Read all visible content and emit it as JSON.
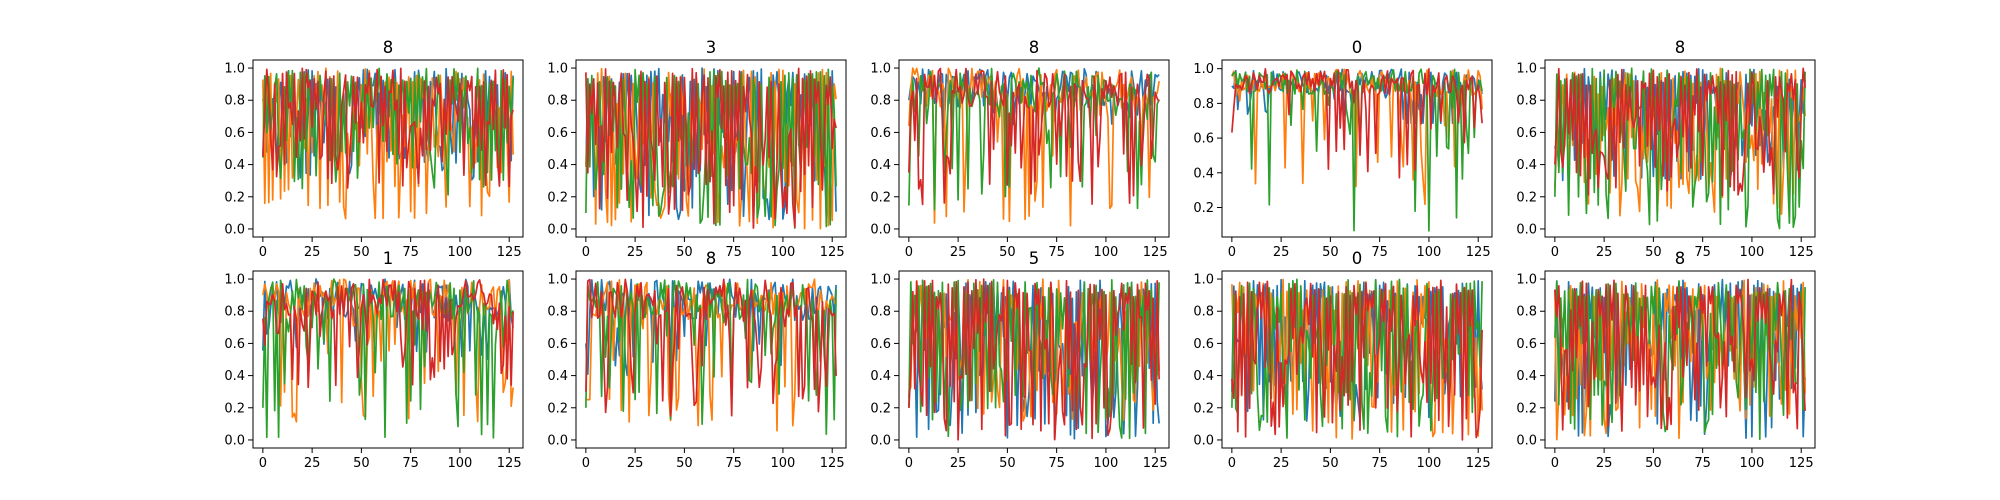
{
  "chart_data": {
    "type": "line",
    "layout": "grid 2 rows x 5 columns",
    "series_colors": [
      "#1f77b4",
      "#ff7f0e",
      "#2ca02c",
      "#d62728"
    ],
    "panels": [
      {
        "title": "8",
        "xlim": [
          -5,
          132
        ],
        "ylim": [
          -0.05,
          1.05
        ],
        "xticks": [
          0,
          25,
          50,
          75,
          100,
          125
        ],
        "yticks": [
          0.0,
          0.2,
          0.4,
          0.6,
          0.8,
          1.0
        ],
        "ytick_labels": [
          "0.0",
          "0.2",
          "0.4",
          "0.6",
          "0.8",
          "1.0"
        ],
        "x": [
          0,
          127
        ],
        "series_low": [
          0.3,
          0.05,
          0.2,
          0.25
        ],
        "series_pattern": "oscillating"
      },
      {
        "title": "3",
        "xlim": [
          -5,
          132
        ],
        "ylim": [
          -0.05,
          1.05
        ],
        "xticks": [
          0,
          25,
          50,
          75,
          100,
          125
        ],
        "yticks": [
          0.0,
          0.2,
          0.4,
          0.6,
          0.8,
          1.0
        ],
        "ytick_labels": [
          "0.0",
          "0.2",
          "0.4",
          "0.6",
          "0.8",
          "1.0"
        ],
        "x": [
          0,
          127
        ],
        "series_low": [
          0.05,
          0.0,
          0.0,
          0.0
        ],
        "series_pattern": "oscillating"
      },
      {
        "title": "8",
        "xlim": [
          -5,
          132
        ],
        "ylim": [
          -0.05,
          1.05
        ],
        "xticks": [
          0,
          25,
          50,
          75,
          100,
          125
        ],
        "yticks": [
          0.0,
          0.2,
          0.4,
          0.6,
          0.8,
          1.0
        ],
        "ytick_labels": [
          "0.0",
          "0.2",
          "0.4",
          "0.6",
          "0.8",
          "1.0"
        ],
        "x": [
          0,
          127
        ],
        "series_low": [
          0.6,
          0.02,
          0.1,
          0.15
        ],
        "series_pattern": "mixed"
      },
      {
        "title": "0",
        "xlim": [
          -5,
          132
        ],
        "ylim": [
          0.03,
          1.05
        ],
        "xticks": [
          0,
          25,
          50,
          75,
          100,
          125
        ],
        "yticks": [
          0.2,
          0.4,
          0.6,
          0.8,
          1.0
        ],
        "ytick_labels": [
          "0.2",
          "0.4",
          "0.6",
          "0.8",
          "1.0"
        ],
        "x": [
          0,
          127
        ],
        "series_low": [
          0.7,
          0.2,
          0.05,
          0.35
        ],
        "series_pattern": "high-plateau"
      },
      {
        "title": "8",
        "xlim": [
          -5,
          132
        ],
        "ylim": [
          -0.05,
          1.05
        ],
        "xticks": [
          0,
          25,
          50,
          75,
          100,
          125
        ],
        "yticks": [
          0.0,
          0.2,
          0.4,
          0.6,
          0.8,
          1.0
        ],
        "ytick_labels": [
          "0.0",
          "0.2",
          "0.4",
          "0.6",
          "0.8",
          "1.0"
        ],
        "x": [
          0,
          127
        ],
        "series_low": [
          0.3,
          0.05,
          0.0,
          0.2
        ],
        "series_pattern": "oscillating"
      },
      {
        "title": "1",
        "xlim": [
          -5,
          132
        ],
        "ylim": [
          -0.05,
          1.05
        ],
        "xticks": [
          0,
          25,
          50,
          75,
          100,
          125
        ],
        "yticks": [
          0.0,
          0.2,
          0.4,
          0.6,
          0.8,
          1.0
        ],
        "ytick_labels": [
          "0.0",
          "0.2",
          "0.4",
          "0.6",
          "0.8",
          "1.0"
        ],
        "x": [
          0,
          127
        ],
        "series_low": [
          0.5,
          0.1,
          0.0,
          0.3
        ],
        "series_pattern": "mixed"
      },
      {
        "title": "8",
        "xlim": [
          -5,
          132
        ],
        "ylim": [
          -0.05,
          1.05
        ],
        "xticks": [
          0,
          25,
          50,
          75,
          100,
          125
        ],
        "yticks": [
          0.0,
          0.2,
          0.4,
          0.6,
          0.8,
          1.0
        ],
        "ytick_labels": [
          "0.0",
          "0.2",
          "0.4",
          "0.6",
          "0.8",
          "1.0"
        ],
        "x": [
          0,
          127
        ],
        "series_low": [
          0.4,
          0.05,
          0.0,
          0.1
        ],
        "series_pattern": "mixed"
      },
      {
        "title": "5",
        "xlim": [
          -5,
          132
        ],
        "ylim": [
          -0.05,
          1.05
        ],
        "xticks": [
          0,
          25,
          50,
          75,
          100,
          125
        ],
        "yticks": [
          0.0,
          0.2,
          0.4,
          0.6,
          0.8,
          1.0
        ],
        "ytick_labels": [
          "0.0",
          "0.2",
          "0.4",
          "0.6",
          "0.8",
          "1.0"
        ],
        "x": [
          0,
          127
        ],
        "series_low": [
          0.0,
          0.1,
          0.0,
          0.0
        ],
        "series_pattern": "oscillating"
      },
      {
        "title": "0",
        "xlim": [
          -5,
          132
        ],
        "ylim": [
          -0.05,
          1.05
        ],
        "xticks": [
          0,
          25,
          50,
          75,
          100,
          125
        ],
        "yticks": [
          0.0,
          0.2,
          0.4,
          0.6,
          0.8,
          1.0
        ],
        "ytick_labels": [
          "0.0",
          "0.2",
          "0.4",
          "0.6",
          "0.8",
          "1.0"
        ],
        "x": [
          0,
          127
        ],
        "series_low": [
          0.1,
          0.0,
          0.0,
          0.0
        ],
        "series_pattern": "oscillating"
      },
      {
        "title": "8",
        "xlim": [
          -5,
          132
        ],
        "ylim": [
          -0.05,
          1.05
        ],
        "xticks": [
          0,
          25,
          50,
          75,
          100,
          125
        ],
        "yticks": [
          0.0,
          0.2,
          0.4,
          0.6,
          0.8,
          1.0
        ],
        "ytick_labels": [
          "0.0",
          "0.2",
          "0.4",
          "0.6",
          "0.8",
          "1.0"
        ],
        "x": [
          0,
          127
        ],
        "series_low": [
          0.0,
          0.0,
          0.0,
          0.05
        ],
        "series_pattern": "oscillating"
      }
    ]
  }
}
